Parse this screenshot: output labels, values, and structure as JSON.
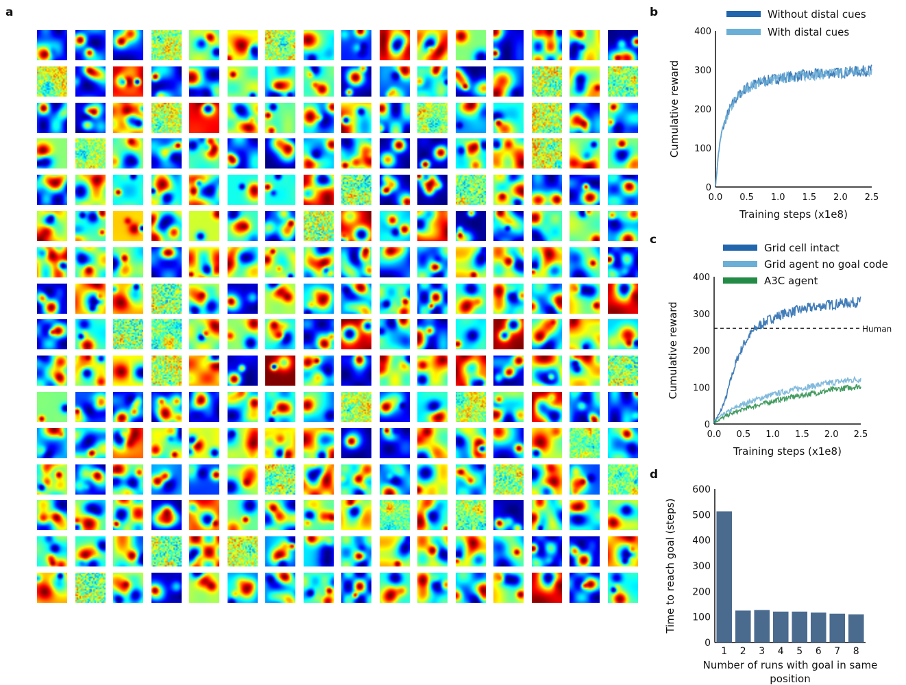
{
  "panels": {
    "a": "a",
    "b": "b",
    "c": "c",
    "d": "d"
  },
  "grid": {
    "rows": 16,
    "cols": 16,
    "colormap": "jet"
  },
  "chart_data": [
    {
      "id": "b",
      "type": "line",
      "xlabel": "Training steps (x1e8)",
      "ylabel": "Cumulative reward",
      "xlim": [
        0,
        2.5
      ],
      "ylim": [
        0,
        400
      ],
      "xticks": [
        "0.0",
        "0.5",
        "1.0",
        "1.5",
        "2.0",
        "2.5"
      ],
      "yticks": [
        "0",
        "100",
        "200",
        "300",
        "400"
      ],
      "legend_position": "top",
      "series": [
        {
          "name": "Without distal cues",
          "color": "#2166ac",
          "x": [
            0,
            0.05,
            0.1,
            0.2,
            0.3,
            0.4,
            0.5,
            0.6,
            0.7,
            0.8,
            1.0,
            1.2,
            1.4,
            1.6,
            1.8,
            2.0,
            2.2,
            2.4,
            2.5
          ],
          "y": [
            0,
            90,
            140,
            190,
            220,
            240,
            255,
            262,
            268,
            272,
            278,
            283,
            286,
            289,
            291,
            293,
            296,
            298,
            300
          ]
        },
        {
          "name": "With distal cues",
          "color": "#6baed6",
          "x": [
            0,
            0.05,
            0.1,
            0.2,
            0.3,
            0.4,
            0.5,
            0.6,
            0.7,
            0.8,
            1.0,
            1.2,
            1.4,
            1.6,
            1.8,
            2.0,
            2.2,
            2.4,
            2.5
          ],
          "y": [
            0,
            88,
            138,
            188,
            218,
            238,
            253,
            261,
            267,
            271,
            277,
            282,
            285,
            288,
            290,
            292,
            295,
            297,
            299
          ]
        }
      ]
    },
    {
      "id": "c",
      "type": "line",
      "xlabel": "Training steps (x1e8)",
      "ylabel": "Cumulative reward",
      "xlim": [
        0,
        2.5
      ],
      "ylim": [
        0,
        400
      ],
      "xticks": [
        "0.0",
        "0.5",
        "1.0",
        "1.5",
        "2.0",
        "2.5"
      ],
      "yticks": [
        "0",
        "100",
        "200",
        "300",
        "400"
      ],
      "legend_position": "top",
      "reference_line": {
        "label": "Human",
        "y": 260
      },
      "series": [
        {
          "name": "Grid cell intact",
          "color": "#2166ac",
          "x": [
            0,
            0.1,
            0.2,
            0.3,
            0.4,
            0.5,
            0.6,
            0.7,
            0.8,
            0.9,
            1.0,
            1.2,
            1.4,
            1.6,
            1.8,
            2.0,
            2.2,
            2.4,
            2.5
          ],
          "y": [
            5,
            30,
            70,
            130,
            180,
            215,
            240,
            258,
            270,
            280,
            288,
            300,
            308,
            314,
            320,
            325,
            328,
            331,
            333
          ]
        },
        {
          "name": "Grid agent no goal code",
          "color": "#6baed6",
          "x": [
            0,
            0.25,
            0.5,
            0.75,
            1.0,
            1.25,
            1.5,
            1.75,
            2.0,
            2.25,
            2.5
          ],
          "y": [
            8,
            35,
            55,
            68,
            80,
            90,
            98,
            105,
            112,
            118,
            122
          ]
        },
        {
          "name": "A3C agent",
          "color": "#238b45",
          "x": [
            0,
            0.25,
            0.5,
            0.75,
            1.0,
            1.25,
            1.5,
            1.75,
            2.0,
            2.25,
            2.5
          ],
          "y": [
            5,
            25,
            40,
            52,
            62,
            71,
            78,
            85,
            92,
            98,
            103
          ]
        }
      ]
    },
    {
      "id": "d",
      "type": "bar",
      "xlabel": "Number of runs with goal in same position",
      "ylabel": "Time to reach goal (steps)",
      "ylim": [
        0,
        600
      ],
      "yticks": [
        "0",
        "100",
        "200",
        "300",
        "400",
        "500",
        "600"
      ],
      "categories": [
        "1",
        "2",
        "3",
        "4",
        "5",
        "6",
        "7",
        "8"
      ],
      "values": [
        513,
        125,
        127,
        121,
        121,
        117,
        113,
        110
      ],
      "color": "#4a6a8e"
    }
  ]
}
